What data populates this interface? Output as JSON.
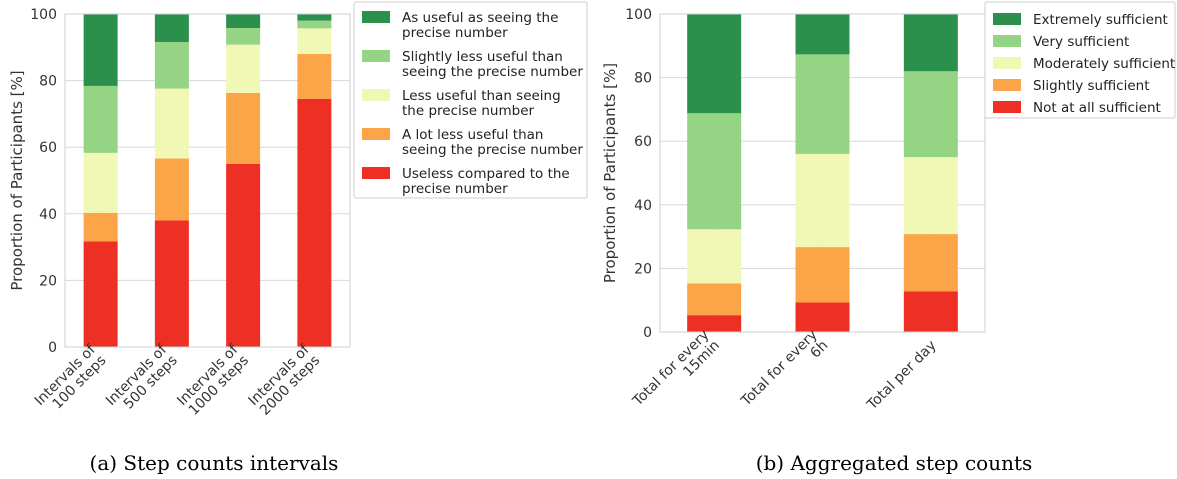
{
  "chart_data": [
    {
      "type": "bar",
      "stacked": true,
      "caption": "(a) Step counts intervals",
      "ylabel": "Proportion of Participants [%]",
      "ylim": [
        0,
        100
      ],
      "yticks": [
        0,
        20,
        40,
        60,
        80,
        100
      ],
      "grid": true,
      "legend_position": "right",
      "categories": [
        [
          "Intervals of",
          "100 steps"
        ],
        [
          "Intervals of",
          "500 steps"
        ],
        [
          "Intervals of",
          "1000 steps"
        ],
        [
          "Intervals of",
          "2000 steps"
        ]
      ],
      "series": [
        {
          "name": [
            "Useless compared to the",
            "precise number"
          ],
          "color": "#ee3024",
          "values": [
            31.7,
            38.0,
            55.0,
            74.5
          ]
        },
        {
          "name": [
            "A lot less useful than",
            "seeing the precise number"
          ],
          "color": "#fba448",
          "values": [
            8.6,
            18.6,
            21.3,
            13.5
          ]
        },
        {
          "name": [
            "Less useful than seeing",
            "the precise number"
          ],
          "color": "#f1f8b6",
          "values": [
            18.0,
            21.0,
            14.5,
            7.7
          ]
        },
        {
          "name": [
            "Slightly less useful than",
            "seeing the precise number"
          ],
          "color": "#95d485",
          "values": [
            20.1,
            14.0,
            5.0,
            2.3
          ]
        },
        {
          "name": [
            "As useful as seeing the",
            "precise number"
          ],
          "color": "#2b904c",
          "values": [
            21.6,
            8.4,
            4.2,
            2.0
          ]
        }
      ]
    },
    {
      "type": "bar",
      "stacked": true,
      "caption": "(b) Aggregated step counts",
      "ylabel": "Proportion of Participants [%]",
      "ylim": [
        0,
        100
      ],
      "yticks": [
        0,
        20,
        40,
        60,
        80,
        100
      ],
      "grid": true,
      "legend_position": "right",
      "categories": [
        [
          "Total for every",
          "15min"
        ],
        [
          "Total for every",
          "6h"
        ],
        [
          "Total per day"
        ]
      ],
      "series": [
        {
          "name": [
            "Not at all sufficient"
          ],
          "color": "#ee3024",
          "values": [
            5.3,
            9.3,
            12.8
          ]
        },
        {
          "name": [
            "Slightly sufficient"
          ],
          "color": "#fba448",
          "values": [
            10.0,
            17.4,
            18.0
          ]
        },
        {
          "name": [
            "Moderately sufficient"
          ],
          "color": "#f1f8b6",
          "values": [
            17.0,
            29.3,
            24.2
          ]
        },
        {
          "name": [
            "Very sufficient"
          ],
          "color": "#95d485",
          "values": [
            36.5,
            31.3,
            27.0
          ]
        },
        {
          "name": [
            "Extremely sufficient"
          ],
          "color": "#2b904c",
          "values": [
            31.2,
            12.7,
            18.0
          ]
        }
      ]
    }
  ]
}
